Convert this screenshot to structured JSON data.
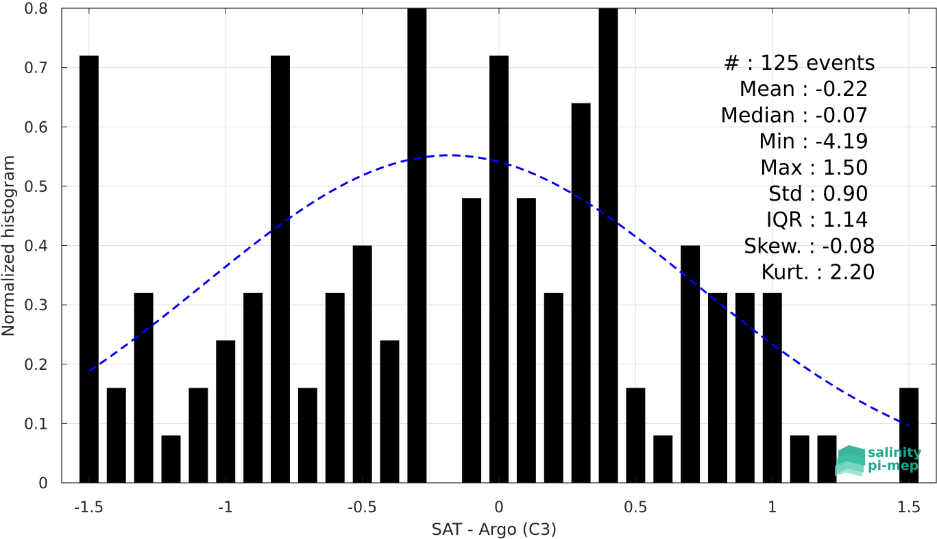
{
  "chart_data": {
    "type": "bar",
    "title": "",
    "xlabel": "SAT - Argo (C3)",
    "ylabel": "Normalized histogram",
    "xlim": [
      -1.6,
      1.6
    ],
    "ylim": [
      0,
      0.8
    ],
    "grid": true,
    "x_ticks": [
      "-1.5",
      "-1",
      "-0.5",
      "0",
      "0.5",
      "1",
      "1.5"
    ],
    "y_ticks": [
      "0",
      "0.1",
      "0.2",
      "0.3",
      "0.4",
      "0.5",
      "0.6",
      "0.7",
      "0.8"
    ],
    "bins": [
      {
        "x": -1.5,
        "value": 0.72
      },
      {
        "x": -1.4,
        "value": 0.16
      },
      {
        "x": -1.3,
        "value": 0.32
      },
      {
        "x": -1.2,
        "value": 0.08
      },
      {
        "x": -1.1,
        "value": 0.16
      },
      {
        "x": -1.0,
        "value": 0.24
      },
      {
        "x": -0.9,
        "value": 0.32
      },
      {
        "x": -0.8,
        "value": 0.72
      },
      {
        "x": -0.7,
        "value": 0.16
      },
      {
        "x": -0.6,
        "value": 0.32
      },
      {
        "x": -0.5,
        "value": 0.4
      },
      {
        "x": -0.4,
        "value": 0.24
      },
      {
        "x": -0.3,
        "value": 0.8
      },
      {
        "x": -0.2,
        "value": 0.0
      },
      {
        "x": -0.1,
        "value": 0.48
      },
      {
        "x": 0.0,
        "value": 0.72
      },
      {
        "x": 0.1,
        "value": 0.48
      },
      {
        "x": 0.2,
        "value": 0.32
      },
      {
        "x": 0.3,
        "value": 0.64
      },
      {
        "x": 0.4,
        "value": 0.8
      },
      {
        "x": 0.5,
        "value": 0.16
      },
      {
        "x": 0.6,
        "value": 0.08
      },
      {
        "x": 0.7,
        "value": 0.4
      },
      {
        "x": 0.8,
        "value": 0.32
      },
      {
        "x": 0.9,
        "value": 0.32
      },
      {
        "x": 1.0,
        "value": 0.32
      },
      {
        "x": 1.1,
        "value": 0.08
      },
      {
        "x": 1.2,
        "value": 0.08
      },
      {
        "x": 1.3,
        "value": 0.0
      },
      {
        "x": 1.4,
        "value": 0.0
      },
      {
        "x": 1.5,
        "value": 0.16
      }
    ],
    "fit_curve": {
      "type": "gaussian",
      "style": "dashed",
      "color": "#0000ee",
      "mean": -0.18,
      "sigma": 0.9,
      "peak": 0.552,
      "x_range": [
        -1.5,
        1.5
      ]
    },
    "stats": [
      {
        "label": "#  : 125 events",
        "align": "far"
      },
      {
        "label": "Mean : -0.22",
        "align": "near"
      },
      {
        "label": "Median : -0.07",
        "align": "near"
      },
      {
        "label": "Min : -4.19",
        "align": "near"
      },
      {
        "label": "Max : 1.50",
        "align": "near"
      },
      {
        "label": "Std : 0.90",
        "align": "near"
      },
      {
        "label": "IQR : 1.14",
        "align": "near"
      },
      {
        "label": "Skew. : -0.08",
        "align": "far"
      },
      {
        "label": "Kurt. : 2.20",
        "align": "far"
      }
    ],
    "bar_color": "#000000"
  },
  "logo": {
    "line1": "salinity",
    "line2": "pi-mep",
    "color": "#1aa88e"
  }
}
